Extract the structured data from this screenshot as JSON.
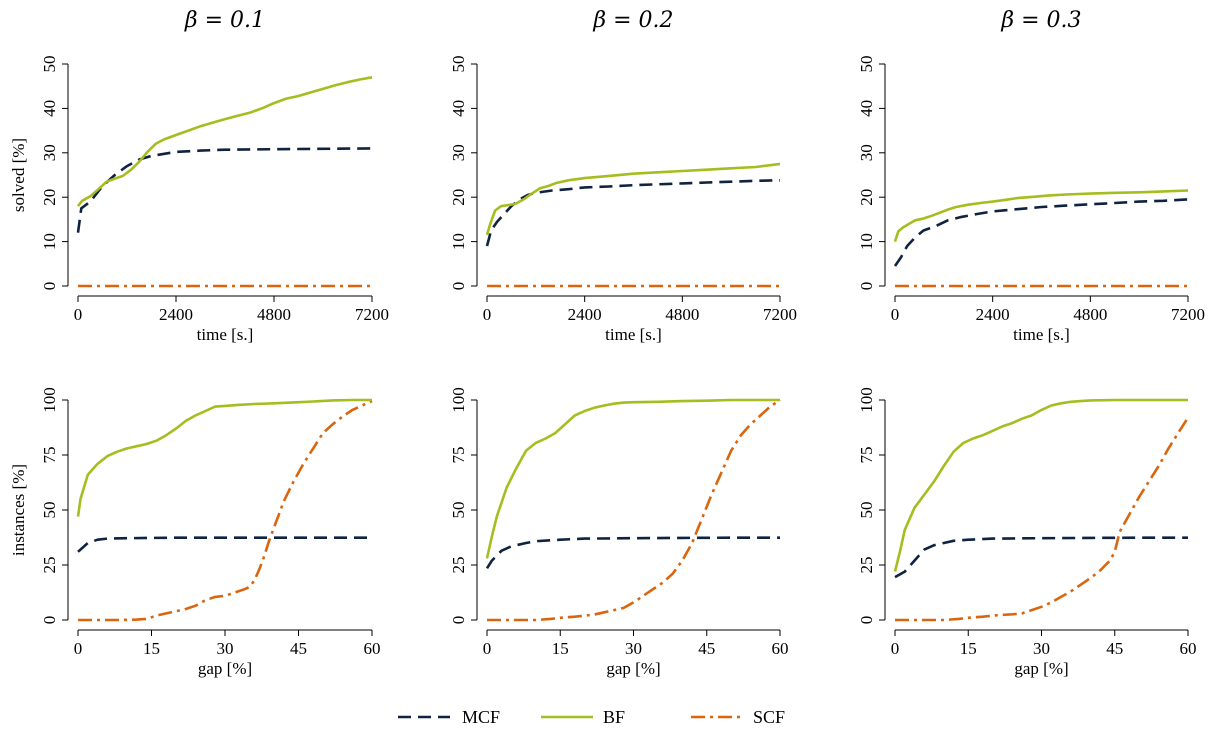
{
  "colors": {
    "MCF": "#0f2340",
    "BF": "#a6bd1f",
    "SCF": "#d9660f"
  },
  "legend": {
    "placement": "bottom-center",
    "items": [
      {
        "name": "MCF",
        "style": "dashed"
      },
      {
        "name": "BF",
        "style": "solid"
      },
      {
        "name": "SCF",
        "style": "dash-dot"
      }
    ]
  },
  "chart_data": [
    {
      "type": "line",
      "title": "β = 0.1",
      "xlabel": "time [s.]",
      "ylabel": "solved [%]",
      "xlim": [
        0,
        7200
      ],
      "ylim": [
        0,
        50
      ],
      "xticks": [
        0,
        2400,
        4800,
        7200
      ],
      "yticks": [
        0,
        10,
        20,
        30,
        40,
        50
      ],
      "series": [
        {
          "name": "MCF",
          "x": [
            0,
            80,
            300,
            600,
            900,
            1200,
            1500,
            1800,
            2400,
            3000,
            3600,
            4800,
            6000,
            7200
          ],
          "y": [
            12,
            17.5,
            19,
            22.5,
            25,
            27,
            28.5,
            29.3,
            30.2,
            30.5,
            30.7,
            30.8,
            30.9,
            31
          ]
        },
        {
          "name": "BF",
          "x": [
            0,
            100,
            300,
            500,
            700,
            900,
            1100,
            1300,
            1500,
            1700,
            1900,
            2100,
            2400,
            2700,
            3000,
            3300,
            3600,
            3900,
            4200,
            4500,
            4800,
            5100,
            5400,
            5700,
            6000,
            6300,
            6600,
            6900,
            7200
          ],
          "y": [
            18,
            19.2,
            20.2,
            21.8,
            23.5,
            24.2,
            24.8,
            26.2,
            28,
            30.2,
            32,
            33,
            34,
            35,
            36,
            36.8,
            37.6,
            38.3,
            39,
            40,
            41.2,
            42.2,
            42.8,
            43.6,
            44.4,
            45.2,
            45.9,
            46.5,
            47
          ]
        },
        {
          "name": "SCF",
          "x": [
            0,
            7200
          ],
          "y": [
            0,
            0
          ]
        }
      ]
    },
    {
      "type": "line",
      "title": "β = 0.2",
      "xlabel": "time [s.]",
      "ylabel": "",
      "xlim": [
        0,
        7200
      ],
      "ylim": [
        0,
        50
      ],
      "xticks": [
        0,
        2400,
        4800,
        7200
      ],
      "yticks": [
        0,
        10,
        20,
        30,
        40,
        50
      ],
      "series": [
        {
          "name": "MCF",
          "x": [
            0,
            100,
            250,
            400,
            600,
            800,
            1000,
            1200,
            1600,
            2000,
            2400,
            3000,
            3600,
            4200,
            4800,
            5400,
            6000,
            6600,
            7200
          ],
          "y": [
            9,
            12.5,
            14.5,
            16,
            18,
            19.5,
            20.5,
            21,
            21.5,
            21.8,
            22.2,
            22.4,
            22.7,
            22.9,
            23.1,
            23.3,
            23.5,
            23.7,
            23.8
          ]
        },
        {
          "name": "BF",
          "x": [
            0,
            80,
            200,
            350,
            500,
            700,
            900,
            1100,
            1300,
            1500,
            1700,
            2000,
            2400,
            3000,
            3600,
            4200,
            4800,
            5400,
            6000,
            6600,
            7200
          ],
          "y": [
            11.5,
            14,
            17,
            18,
            18.2,
            18.5,
            19.5,
            20.8,
            22,
            22.5,
            23.2,
            23.8,
            24.3,
            24.8,
            25.3,
            25.6,
            25.9,
            26.2,
            26.5,
            26.8,
            27.5
          ]
        },
        {
          "name": "SCF",
          "x": [
            0,
            7200
          ],
          "y": [
            0,
            0
          ]
        }
      ]
    },
    {
      "type": "line",
      "title": "β = 0.3",
      "xlabel": "time [s.]",
      "ylabel": "",
      "xlim": [
        0,
        7200
      ],
      "ylim": [
        0,
        50
      ],
      "xticks": [
        0,
        2400,
        4800,
        7200
      ],
      "yticks": [
        0,
        10,
        20,
        30,
        40,
        50
      ],
      "series": [
        {
          "name": "MCF",
          "x": [
            0,
            150,
            300,
            500,
            700,
            1000,
            1300,
            1600,
            2000,
            2400,
            3000,
            3600,
            4200,
            4800,
            5400,
            6000,
            6600,
            7200
          ],
          "y": [
            4.5,
            6.5,
            9,
            11,
            12.5,
            13.5,
            14.8,
            15.5,
            16.2,
            16.8,
            17.3,
            17.8,
            18.1,
            18.4,
            18.7,
            19,
            19.2,
            19.5
          ]
        },
        {
          "name": "BF",
          "x": [
            0,
            80,
            200,
            350,
            500,
            700,
            900,
            1100,
            1300,
            1500,
            1800,
            2100,
            2400,
            2700,
            3000,
            3400,
            3800,
            4200,
            4800,
            5400,
            6000,
            6600,
            7200
          ],
          "y": [
            10,
            12.3,
            13.2,
            14,
            14.8,
            15.2,
            15.8,
            16.5,
            17.2,
            17.8,
            18.3,
            18.7,
            19,
            19.4,
            19.8,
            20.1,
            20.4,
            20.6,
            20.8,
            21,
            21.1,
            21.3,
            21.5
          ]
        },
        {
          "name": "SCF",
          "x": [
            0,
            7200
          ],
          "y": [
            0,
            0
          ]
        }
      ]
    },
    {
      "type": "line",
      "title": "",
      "xlabel": "gap [%]",
      "ylabel": "instances [%]",
      "xlim": [
        0,
        60
      ],
      "ylim": [
        0,
        100
      ],
      "xticks": [
        0,
        15,
        30,
        45,
        60
      ],
      "yticks": [
        0,
        25,
        50,
        75,
        100
      ],
      "series": [
        {
          "name": "MCF",
          "x": [
            0,
            2,
            4,
            6,
            10,
            15,
            20,
            30,
            40,
            50,
            60
          ],
          "y": [
            31,
            35,
            36.5,
            37,
            37.2,
            37.3,
            37.4,
            37.4,
            37.4,
            37.4,
            37.4
          ]
        },
        {
          "name": "BF",
          "x": [
            0,
            0.5,
            2,
            4,
            6,
            8,
            10,
            12,
            14,
            16,
            18,
            20,
            22,
            24,
            26,
            28,
            30,
            33,
            36,
            40,
            44,
            48,
            50,
            52,
            56,
            60
          ],
          "y": [
            47,
            55,
            66,
            71,
            74.5,
            76.5,
            78,
            79,
            80,
            81.5,
            84,
            87,
            90.5,
            93,
            95,
            97,
            97.3,
            97.8,
            98.2,
            98.5,
            98.9,
            99.3,
            99.6,
            99.8,
            100,
            100
          ]
        },
        {
          "name": "SCF",
          "x": [
            0,
            4,
            8,
            12,
            14,
            16,
            18,
            20,
            22,
            24,
            26,
            28,
            30,
            32,
            34,
            35,
            36,
            37,
            38,
            39,
            40,
            41,
            42,
            44,
            46,
            48,
            50,
            52,
            54,
            56,
            58,
            60
          ],
          "y": [
            0,
            0,
            0,
            0.2,
            0.5,
            2,
            3,
            4,
            5,
            6.5,
            9,
            10.5,
            11,
            12.5,
            14,
            15,
            18,
            23,
            29,
            36,
            42,
            48,
            54,
            63,
            71,
            78,
            85,
            89,
            92.5,
            95.5,
            97.5,
            99.5
          ]
        }
      ]
    },
    {
      "type": "line",
      "title": "",
      "xlabel": "gap [%]",
      "ylabel": "",
      "xlim": [
        0,
        60
      ],
      "ylim": [
        0,
        100
      ],
      "xticks": [
        0,
        15,
        30,
        45,
        60
      ],
      "yticks": [
        0,
        25,
        50,
        75,
        100
      ],
      "series": [
        {
          "name": "MCF",
          "x": [
            0,
            1,
            3,
            5,
            8,
            10,
            15,
            20,
            30,
            40,
            50,
            60
          ],
          "y": [
            23.5,
            27,
            31.5,
            33.5,
            35,
            35.8,
            36.5,
            37,
            37.2,
            37.3,
            37.4,
            37.4
          ]
        },
        {
          "name": "BF",
          "x": [
            0,
            1,
            2,
            4,
            6,
            8,
            10,
            12,
            14,
            16,
            18,
            20,
            22,
            24,
            26,
            28,
            30,
            35,
            40,
            45,
            50,
            55,
            60
          ],
          "y": [
            28,
            38,
            47,
            60,
            69,
            77,
            80.5,
            82.5,
            85,
            89,
            93,
            95,
            96.5,
            97.5,
            98.3,
            98.8,
            99,
            99.2,
            99.5,
            99.7,
            100,
            100,
            100
          ]
        },
        {
          "name": "SCF",
          "x": [
            0,
            5,
            10,
            13,
            15,
            18,
            20,
            22,
            24,
            26,
            28,
            30,
            32,
            34,
            36,
            38,
            40,
            42,
            44,
            46,
            48,
            50,
            52,
            54,
            56,
            58,
            60
          ],
          "y": [
            0,
            0,
            0,
            0.5,
            1,
            1.5,
            2,
            2.5,
            3.5,
            4.5,
            5.5,
            8,
            11,
            14,
            17,
            21,
            27,
            35,
            46,
            57,
            67,
            77,
            84,
            89,
            93,
            97,
            100
          ]
        }
      ]
    },
    {
      "type": "line",
      "title": "",
      "xlabel": "gap [%]",
      "ylabel": "",
      "xlim": [
        0,
        60
      ],
      "ylim": [
        0,
        100
      ],
      "xticks": [
        0,
        15,
        30,
        45,
        60
      ],
      "yticks": [
        0,
        25,
        50,
        75,
        100
      ],
      "series": [
        {
          "name": "MCF",
          "x": [
            0,
            2,
            4,
            6,
            8,
            10,
            12,
            15,
            20,
            30,
            40,
            50,
            60
          ],
          "y": [
            19.5,
            22,
            27,
            32,
            34,
            35,
            36,
            36.5,
            37,
            37.2,
            37.3,
            37.4,
            37.4
          ]
        },
        {
          "name": "BF",
          "x": [
            0,
            1,
            2,
            4,
            6,
            8,
            10,
            12,
            14,
            16,
            18,
            20,
            22,
            24,
            26,
            28,
            30,
            32,
            34,
            36,
            38,
            40,
            45,
            50,
            55,
            60
          ],
          "y": [
            22,
            31,
            41,
            51,
            57,
            63,
            70,
            76.5,
            80.5,
            82.5,
            84,
            86,
            88,
            89.5,
            91.5,
            93,
            95.5,
            97.5,
            98.5,
            99.2,
            99.5,
            99.8,
            100,
            100,
            100,
            100
          ]
        },
        {
          "name": "SCF",
          "x": [
            0,
            5,
            10,
            13,
            15,
            18,
            20,
            22,
            24,
            26,
            28,
            30,
            32,
            34,
            36,
            38,
            40,
            42,
            44,
            45,
            46,
            48,
            50,
            52,
            54,
            56,
            58,
            60
          ],
          "y": [
            0,
            0,
            0,
            0.5,
            1,
            1.5,
            2,
            2.3,
            2.6,
            3,
            4.5,
            6,
            8,
            10.5,
            13,
            16,
            19,
            22.5,
            27,
            31,
            40,
            48,
            56,
            63,
            70,
            78,
            85,
            92
          ]
        }
      ]
    }
  ]
}
